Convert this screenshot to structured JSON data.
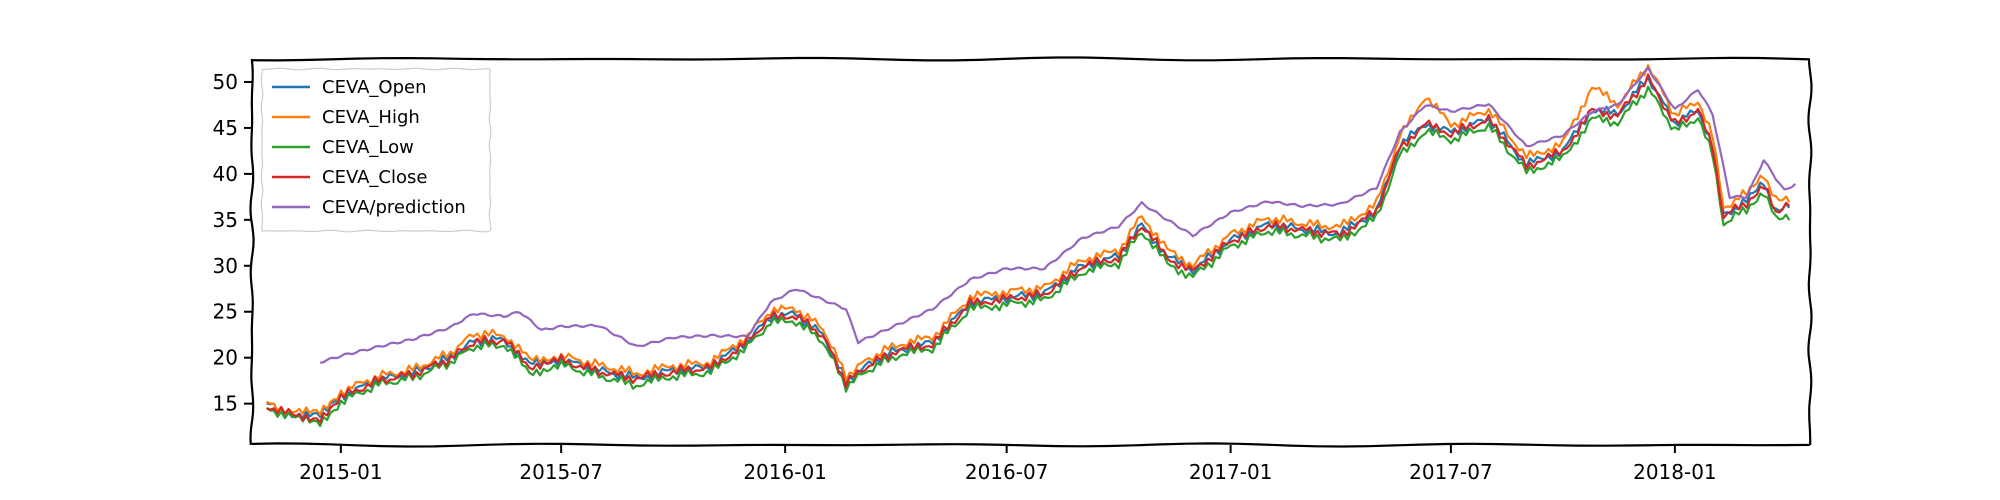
{
  "chart_data": {
    "type": "line",
    "title": "",
    "xlabel": "",
    "ylabel": "",
    "grid": false,
    "legend_position": "upper-left",
    "xlim": [
      "2014-10-20",
      "2018-04-22"
    ],
    "ylim": [
      10.5,
      52.5
    ],
    "x_ticks": [
      "2015-01",
      "2015-07",
      "2016-01",
      "2016-07",
      "2017-01",
      "2017-07",
      "2018-01"
    ],
    "y_ticks": [
      15,
      20,
      25,
      30,
      35,
      40,
      45,
      50
    ],
    "series": [
      {
        "name": "CEVA_Open",
        "color": "#1f77b4",
        "points": [
          [
            "2014-11-01",
            14.9
          ],
          [
            "2014-11-25",
            13.7
          ],
          [
            "2014-12-15",
            13.6
          ],
          [
            "2015-01-01",
            15.8
          ],
          [
            "2015-02-01",
            17.6
          ],
          [
            "2015-03-01",
            18.3
          ],
          [
            "2015-04-01",
            20.0
          ],
          [
            "2015-04-20",
            21.8
          ],
          [
            "2015-05-15",
            22.0
          ],
          [
            "2015-06-05",
            19.2
          ],
          [
            "2015-07-01",
            19.8
          ],
          [
            "2015-08-01",
            18.6
          ],
          [
            "2015-09-01",
            17.8
          ],
          [
            "2015-10-01",
            18.6
          ],
          [
            "2015-11-01",
            19.0
          ],
          [
            "2015-12-01",
            21.8
          ],
          [
            "2015-12-20",
            24.5
          ],
          [
            "2016-01-10",
            24.7
          ],
          [
            "2016-02-01",
            22.5
          ],
          [
            "2016-02-20",
            17.4
          ],
          [
            "2016-03-10",
            19.3
          ],
          [
            "2016-04-01",
            20.8
          ],
          [
            "2016-05-01",
            21.6
          ],
          [
            "2016-06-01",
            26.0
          ],
          [
            "2016-07-01",
            26.5
          ],
          [
            "2016-08-01",
            27.0
          ],
          [
            "2016-09-01",
            30.0
          ],
          [
            "2016-10-01",
            31.0
          ],
          [
            "2016-10-20",
            34.5
          ],
          [
            "2016-11-10",
            31.0
          ],
          [
            "2016-12-01",
            29.5
          ],
          [
            "2017-01-01",
            32.8
          ],
          [
            "2017-02-01",
            34.5
          ],
          [
            "2017-03-01",
            34.0
          ],
          [
            "2017-04-01",
            33.5
          ],
          [
            "2017-05-01",
            36.0
          ],
          [
            "2017-05-20",
            43.0
          ],
          [
            "2017-06-10",
            45.5
          ],
          [
            "2017-07-01",
            44.5
          ],
          [
            "2017-08-01",
            46.0
          ],
          [
            "2017-09-01",
            41.0
          ],
          [
            "2017-10-01",
            42.5
          ],
          [
            "2017-10-25",
            47.0
          ],
          [
            "2017-11-15",
            46.5
          ],
          [
            "2017-12-10",
            50.5
          ],
          [
            "2018-01-01",
            45.5
          ],
          [
            "2018-01-20",
            47.0
          ],
          [
            "2018-02-01",
            43.0
          ],
          [
            "2018-02-10",
            35.5
          ],
          [
            "2018-03-01",
            37.0
          ],
          [
            "2018-03-15",
            39.0
          ],
          [
            "2018-03-25",
            35.8
          ],
          [
            "2018-04-05",
            36.5
          ]
        ]
      },
      {
        "name": "CEVA_High",
        "color": "#ff7f0e",
        "points": [
          [
            "2014-11-01",
            15.1
          ],
          [
            "2014-11-25",
            14.0
          ],
          [
            "2014-12-15",
            14.0
          ],
          [
            "2015-01-01",
            16.3
          ],
          [
            "2015-02-01",
            18.0
          ],
          [
            "2015-03-01",
            18.7
          ],
          [
            "2015-04-01",
            20.5
          ],
          [
            "2015-04-20",
            22.6
          ],
          [
            "2015-05-15",
            22.5
          ],
          [
            "2015-06-05",
            19.8
          ],
          [
            "2015-07-01",
            20.2
          ],
          [
            "2015-08-01",
            19.2
          ],
          [
            "2015-09-01",
            18.3
          ],
          [
            "2015-10-01",
            19.1
          ],
          [
            "2015-11-01",
            19.5
          ],
          [
            "2015-12-01",
            22.4
          ],
          [
            "2015-12-20",
            25.1
          ],
          [
            "2016-01-10",
            25.3
          ],
          [
            "2016-02-01",
            23.2
          ],
          [
            "2016-02-20",
            18.0
          ],
          [
            "2016-03-10",
            19.9
          ],
          [
            "2016-04-01",
            21.4
          ],
          [
            "2016-05-01",
            22.2
          ],
          [
            "2016-06-01",
            26.6
          ],
          [
            "2016-07-01",
            27.2
          ],
          [
            "2016-08-01",
            27.6
          ],
          [
            "2016-09-01",
            30.7
          ],
          [
            "2016-10-01",
            31.6
          ],
          [
            "2016-10-20",
            35.5
          ],
          [
            "2016-11-10",
            31.7
          ],
          [
            "2016-12-01",
            30.1
          ],
          [
            "2017-01-01",
            33.4
          ],
          [
            "2017-02-01",
            35.2
          ],
          [
            "2017-03-01",
            34.6
          ],
          [
            "2017-04-01",
            34.2
          ],
          [
            "2017-05-01",
            36.8
          ],
          [
            "2017-05-20",
            44.0
          ],
          [
            "2017-06-10",
            48.5
          ],
          [
            "2017-07-01",
            45.3
          ],
          [
            "2017-08-01",
            47.0
          ],
          [
            "2017-09-01",
            41.8
          ],
          [
            "2017-10-01",
            43.3
          ],
          [
            "2017-10-25",
            49.5
          ],
          [
            "2017-11-15",
            47.5
          ],
          [
            "2017-12-10",
            51.8
          ],
          [
            "2018-01-01",
            46.4
          ],
          [
            "2018-01-20",
            48.0
          ],
          [
            "2018-02-01",
            44.0
          ],
          [
            "2018-02-10",
            36.3
          ],
          [
            "2018-03-01",
            37.9
          ],
          [
            "2018-03-15",
            40.0
          ],
          [
            "2018-03-25",
            37.0
          ],
          [
            "2018-04-05",
            37.0
          ]
        ]
      },
      {
        "name": "CEVA_Low",
        "color": "#2ca02c",
        "points": [
          [
            "2014-11-01",
            14.6
          ],
          [
            "2014-11-25",
            13.3
          ],
          [
            "2014-12-15",
            13.0
          ],
          [
            "2015-01-01",
            15.2
          ],
          [
            "2015-02-01",
            17.1
          ],
          [
            "2015-03-01",
            17.8
          ],
          [
            "2015-04-01",
            19.5
          ],
          [
            "2015-04-20",
            21.2
          ],
          [
            "2015-05-15",
            21.4
          ],
          [
            "2015-06-05",
            18.4
          ],
          [
            "2015-07-01",
            19.2
          ],
          [
            "2015-08-01",
            18.0
          ],
          [
            "2015-09-01",
            17.0
          ],
          [
            "2015-10-01",
            18.0
          ],
          [
            "2015-11-01",
            18.4
          ],
          [
            "2015-12-01",
            21.2
          ],
          [
            "2015-12-20",
            23.8
          ],
          [
            "2016-01-10",
            24.0
          ],
          [
            "2016-02-01",
            21.8
          ],
          [
            "2016-02-20",
            16.9
          ],
          [
            "2016-03-10",
            18.7
          ],
          [
            "2016-04-01",
            20.2
          ],
          [
            "2016-05-01",
            21.0
          ],
          [
            "2016-06-01",
            25.3
          ],
          [
            "2016-07-01",
            25.8
          ],
          [
            "2016-08-01",
            26.3
          ],
          [
            "2016-09-01",
            29.3
          ],
          [
            "2016-10-01",
            30.3
          ],
          [
            "2016-10-20",
            33.8
          ],
          [
            "2016-11-10",
            30.2
          ],
          [
            "2016-12-01",
            28.8
          ],
          [
            "2017-01-01",
            32.1
          ],
          [
            "2017-02-01",
            33.8
          ],
          [
            "2017-03-01",
            33.3
          ],
          [
            "2017-04-01",
            32.8
          ],
          [
            "2017-05-01",
            35.2
          ],
          [
            "2017-05-20",
            42.0
          ],
          [
            "2017-06-10",
            44.6
          ],
          [
            "2017-07-01",
            43.7
          ],
          [
            "2017-08-01",
            45.2
          ],
          [
            "2017-09-01",
            40.2
          ],
          [
            "2017-10-01",
            41.7
          ],
          [
            "2017-10-25",
            46.0
          ],
          [
            "2017-11-15",
            45.6
          ],
          [
            "2017-12-10",
            49.3
          ],
          [
            "2018-01-01",
            44.7
          ],
          [
            "2018-01-20",
            46.1
          ],
          [
            "2018-02-01",
            42.0
          ],
          [
            "2018-02-10",
            34.6
          ],
          [
            "2018-03-01",
            36.2
          ],
          [
            "2018-03-15",
            38.2
          ],
          [
            "2018-03-25",
            35.0
          ],
          [
            "2018-04-05",
            35.2
          ]
        ]
      },
      {
        "name": "CEVA_Close",
        "color": "#d62728",
        "points": [
          [
            "2014-11-01",
            14.8
          ],
          [
            "2014-11-25",
            13.6
          ],
          [
            "2014-12-15",
            13.5
          ],
          [
            "2015-01-01",
            15.7
          ],
          [
            "2015-02-01",
            17.5
          ],
          [
            "2015-03-01",
            18.2
          ],
          [
            "2015-04-01",
            19.9
          ],
          [
            "2015-04-20",
            21.7
          ],
          [
            "2015-05-15",
            21.9
          ],
          [
            "2015-06-05",
            19.1
          ],
          [
            "2015-07-01",
            19.7
          ],
          [
            "2015-08-01",
            18.5
          ],
          [
            "2015-09-01",
            17.7
          ],
          [
            "2015-10-01",
            18.5
          ],
          [
            "2015-11-01",
            18.9
          ],
          [
            "2015-12-01",
            21.7
          ],
          [
            "2015-12-20",
            24.4
          ],
          [
            "2016-01-10",
            24.6
          ],
          [
            "2016-02-01",
            22.4
          ],
          [
            "2016-02-20",
            17.3
          ],
          [
            "2016-03-10",
            19.2
          ],
          [
            "2016-04-01",
            20.7
          ],
          [
            "2016-05-01",
            21.5
          ],
          [
            "2016-06-01",
            25.9
          ],
          [
            "2016-07-01",
            26.4
          ],
          [
            "2016-08-01",
            26.9
          ],
          [
            "2016-09-01",
            29.9
          ],
          [
            "2016-10-01",
            30.9
          ],
          [
            "2016-10-20",
            34.4
          ],
          [
            "2016-11-10",
            30.9
          ],
          [
            "2016-12-01",
            29.4
          ],
          [
            "2017-01-01",
            32.7
          ],
          [
            "2017-02-01",
            34.4
          ],
          [
            "2017-03-01",
            33.9
          ],
          [
            "2017-04-01",
            33.4
          ],
          [
            "2017-05-01",
            35.9
          ],
          [
            "2017-05-20",
            42.9
          ],
          [
            "2017-06-10",
            45.4
          ],
          [
            "2017-07-01",
            44.4
          ],
          [
            "2017-08-01",
            45.9
          ],
          [
            "2017-09-01",
            40.9
          ],
          [
            "2017-10-01",
            42.4
          ],
          [
            "2017-10-25",
            46.9
          ],
          [
            "2017-11-15",
            46.4
          ],
          [
            "2017-12-10",
            50.4
          ],
          [
            "2018-01-01",
            45.4
          ],
          [
            "2018-01-20",
            46.9
          ],
          [
            "2018-02-01",
            42.9
          ],
          [
            "2018-02-10",
            35.4
          ],
          [
            "2018-03-01",
            36.9
          ],
          [
            "2018-03-15",
            38.9
          ],
          [
            "2018-03-25",
            35.7
          ],
          [
            "2018-04-05",
            37.0
          ]
        ]
      },
      {
        "name": "CEVA/prediction",
        "color": "#9467bd",
        "points": [
          [
            "2014-12-15",
            19.5
          ],
          [
            "2015-01-01",
            20.2
          ],
          [
            "2015-02-01",
            21.2
          ],
          [
            "2015-03-01",
            22.0
          ],
          [
            "2015-04-01",
            23.3
          ],
          [
            "2015-04-20",
            24.8
          ],
          [
            "2015-05-15",
            24.5
          ],
          [
            "2015-05-28",
            25.0
          ],
          [
            "2015-06-15",
            23.0
          ],
          [
            "2015-07-01",
            23.4
          ],
          [
            "2015-08-01",
            23.5
          ],
          [
            "2015-09-01",
            21.2
          ],
          [
            "2015-10-01",
            22.2
          ],
          [
            "2015-11-01",
            22.4
          ],
          [
            "2015-12-01",
            22.3
          ],
          [
            "2015-12-20",
            26.0
          ],
          [
            "2016-01-10",
            27.5
          ],
          [
            "2016-02-01",
            26.3
          ],
          [
            "2016-02-20",
            25.3
          ],
          [
            "2016-03-01",
            21.7
          ],
          [
            "2016-04-01",
            23.5
          ],
          [
            "2016-05-01",
            25.3
          ],
          [
            "2016-06-01",
            28.5
          ],
          [
            "2016-07-01",
            29.7
          ],
          [
            "2016-08-01",
            29.7
          ],
          [
            "2016-09-01",
            33.0
          ],
          [
            "2016-10-01",
            34.3
          ],
          [
            "2016-10-20",
            36.8
          ],
          [
            "2016-11-10",
            35.0
          ],
          [
            "2016-12-01",
            33.3
          ],
          [
            "2017-01-01",
            35.8
          ],
          [
            "2017-02-01",
            37.0
          ],
          [
            "2017-03-01",
            36.5
          ],
          [
            "2017-04-01",
            36.7
          ],
          [
            "2017-05-01",
            38.5
          ],
          [
            "2017-05-20",
            44.5
          ],
          [
            "2017-06-10",
            47.5
          ],
          [
            "2017-07-01",
            46.8
          ],
          [
            "2017-08-01",
            47.6
          ],
          [
            "2017-09-01",
            43.0
          ],
          [
            "2017-10-01",
            44.2
          ],
          [
            "2017-10-25",
            46.8
          ],
          [
            "2017-11-15",
            47.5
          ],
          [
            "2017-12-10",
            51.5
          ],
          [
            "2018-01-01",
            47.0
          ],
          [
            "2018-01-20",
            49.2
          ],
          [
            "2018-02-01",
            46.5
          ],
          [
            "2018-02-15",
            37.5
          ],
          [
            "2018-03-01",
            37.5
          ],
          [
            "2018-03-15",
            41.5
          ],
          [
            "2018-03-25",
            39.5
          ],
          [
            "2018-04-01",
            38.2
          ],
          [
            "2018-04-10",
            38.9
          ]
        ]
      }
    ]
  }
}
